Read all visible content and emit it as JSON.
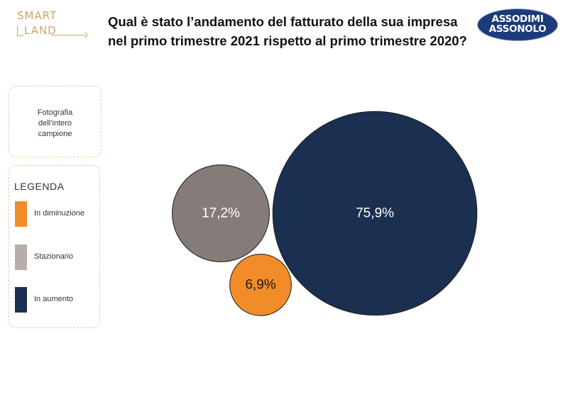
{
  "logo_left": {
    "line1": "SMART",
    "line2": "LAND"
  },
  "title": {
    "line1": "Qual è stato l’andamento del fatturato della sua impresa",
    "line2": "nel primo trimestre 2021 rispetto al primo trimestre 2020?"
  },
  "logo_right": {
    "line1": "ASSODIMI",
    "line2": "ASSONOLO"
  },
  "photo_box": {
    "line1": "Fotografia",
    "line2": "dell’intero",
    "line3": "campione"
  },
  "legend": {
    "title": "LEGENDA",
    "items": [
      {
        "label": "In diminuzione",
        "color": "#f28c28"
      },
      {
        "label": "Stazionario",
        "color": "#b8aea9"
      },
      {
        "label": "In aumento",
        "color": "#1b3050"
      }
    ]
  },
  "chart_data": {
    "type": "bubble",
    "title": "Qual è stato l’andamento del fatturato della sua impresa nel primo trimestre 2021 rispetto al primo trimestre 2020?",
    "series": [
      {
        "name": "In aumento",
        "value": 75.9,
        "label": "75,9%",
        "color": "#1b3050",
        "text_color": "#ffffff"
      },
      {
        "name": "Stazionario",
        "value": 17.2,
        "label": "17,2%",
        "color": "#857c79",
        "text_color": "#ffffff"
      },
      {
        "name": "In diminuzione",
        "value": 6.9,
        "label": "6,9%",
        "color": "#f28c28",
        "text_color": "#1a1a1a"
      }
    ]
  }
}
